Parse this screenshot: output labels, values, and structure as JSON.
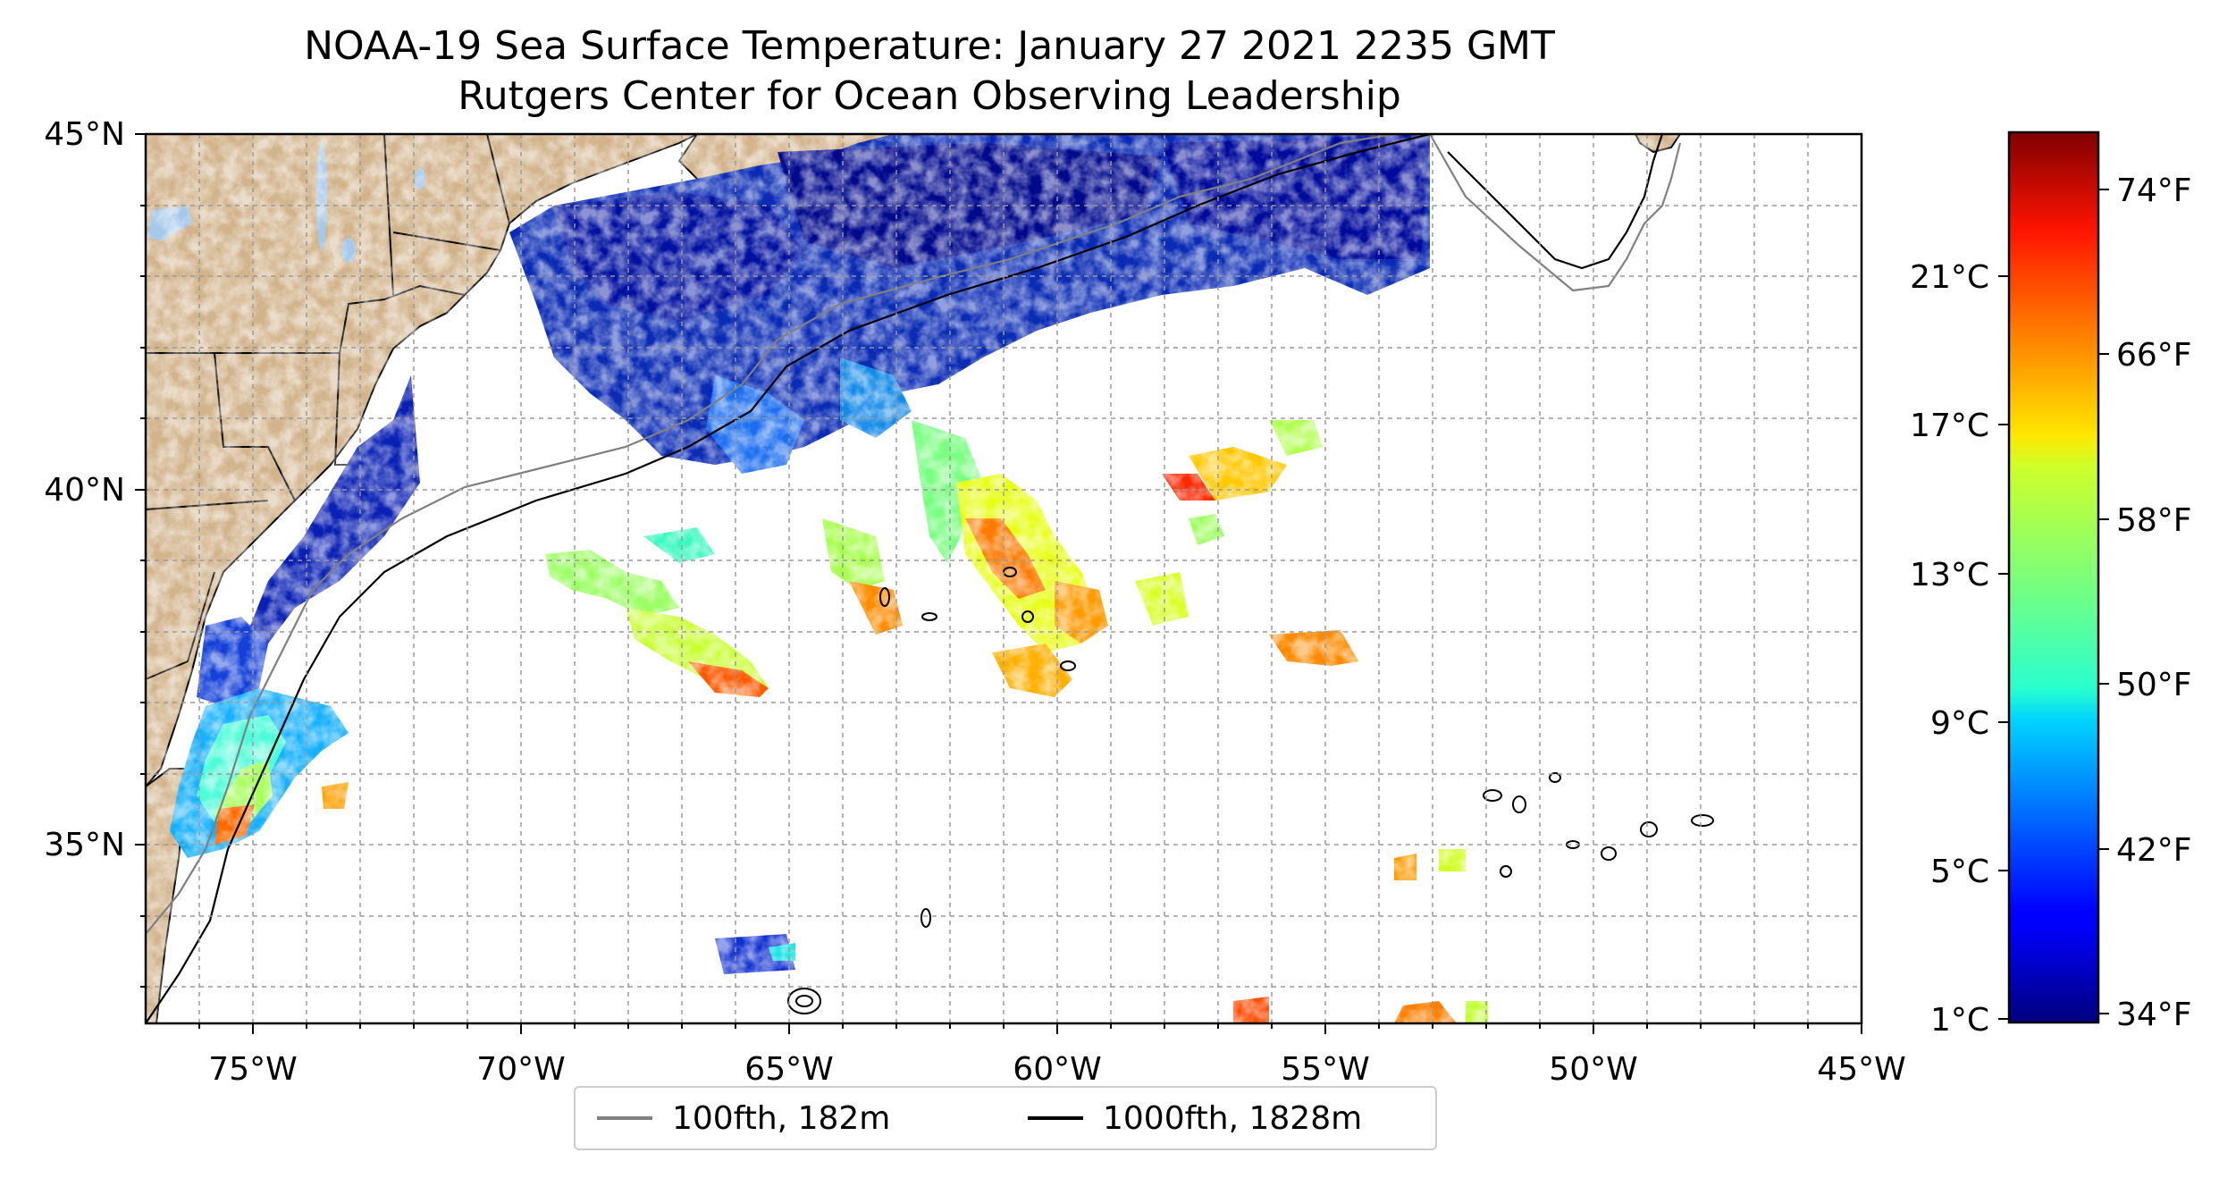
{
  "title": {
    "line1": "NOAA-19 Sea Surface Temperature: January 27 2021 2235 GMT",
    "line2": "Rutgers Center for Ocean Observing Leadership"
  },
  "map": {
    "lon_range": [
      -77,
      -45
    ],
    "lat_range": [
      32.5,
      45
    ],
    "gridlines": "dashed, 1 degree",
    "land_color": "#d2b48c",
    "lake_color": "#a6c8ea"
  },
  "x_ticks": [
    "75°W",
    "70°W",
    "65°W",
    "60°W",
    "55°W",
    "50°W",
    "45°W"
  ],
  "y_ticks": [
    "45°N",
    "40°N",
    "35°N"
  ],
  "colorbar": {
    "range_c": [
      0.5,
      24.5
    ],
    "colormap": "jet",
    "celsius_ticks": [
      "1°C",
      "5°C",
      "9°C",
      "13°C",
      "17°C",
      "21°C"
    ],
    "fahrenheit_ticks": [
      "34°F",
      "42°F",
      "50°F",
      "58°F",
      "66°F",
      "74°F"
    ]
  },
  "legend": {
    "items": [
      {
        "label": "100fth, 182m",
        "color": "#808080"
      },
      {
        "label": "1000fth, 1828m",
        "color": "#000000"
      }
    ]
  }
}
